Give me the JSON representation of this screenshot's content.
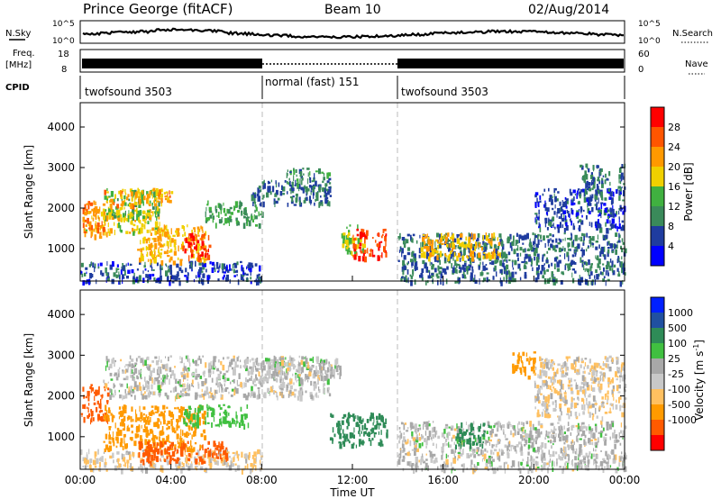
{
  "header": {
    "station": "Prince George (fitACF)",
    "beam": "Beam 10",
    "date": "02/Aug/2014"
  },
  "sky_panel": {
    "left_label": "N.Sky",
    "left_ticks": [
      "10^5",
      "10^0"
    ],
    "right_label": "N.Search",
    "right_ticks": [
      "10^5",
      "10^0"
    ]
  },
  "freq_panel": {
    "left_label": "Freq.",
    "left_unit": "[MHz]",
    "left_ticks": [
      "18",
      "8"
    ],
    "right_label": "Nave",
    "right_ticks": [
      "60",
      "0"
    ]
  },
  "cpid_panel": {
    "label": "CPID",
    "modes": [
      {
        "name": "twofsound 3503",
        "start_h": 0,
        "end_h": 8
      },
      {
        "name": "normal (fast) 151",
        "start_h": 8,
        "end_h": 14
      },
      {
        "name": "twofsound 3503",
        "start_h": 14,
        "end_h": 24
      }
    ]
  },
  "colors": {
    "power": [
      "#0000ff",
      "#1f3c9f",
      "#3a8a5a",
      "#40b040",
      "#f0d000",
      "#ff9900",
      "#ff5500",
      "#ff0000"
    ],
    "velocity": [
      "#ff0000",
      "#ff5a00",
      "#ff9a00",
      "#ffc060",
      "#c8c8c8",
      "#a8a8a8",
      "#40c040",
      "#2e8b57",
      "#2050a0",
      "#0020ff"
    ]
  },
  "chart_data": [
    {
      "type": "heatmap",
      "title": "",
      "quantity": "Power",
      "xlabel": "",
      "ylabel": "Slant Range [km]",
      "xlim": [
        0,
        24
      ],
      "ylim": [
        200,
        4600
      ],
      "yticks": [
        1000,
        2000,
        3000,
        4000
      ],
      "colorbar": {
        "label": "Power [dB]",
        "ticks": [
          "4",
          "8",
          "12",
          "16",
          "20",
          "24",
          "28"
        ],
        "min": 0,
        "max": 32
      },
      "regions": [
        {
          "t0": 0.0,
          "t1": 8.0,
          "r0": 200,
          "r1": 700,
          "power": 6
        },
        {
          "t0": 0.1,
          "t1": 3.5,
          "r0": 1400,
          "r1": 2000,
          "power": 18
        },
        {
          "t0": 0.1,
          "t1": 1.0,
          "r0": 1300,
          "r1": 2200,
          "power": 24
        },
        {
          "t0": 1.0,
          "t1": 3.5,
          "r0": 1800,
          "r1": 2500,
          "power": 14
        },
        {
          "t0": 1.0,
          "t1": 4.0,
          "r0": 2100,
          "r1": 2500,
          "power": 22
        },
        {
          "t0": 2.5,
          "t1": 5.5,
          "r0": 700,
          "r1": 1600,
          "power": 20
        },
        {
          "t0": 4.5,
          "t1": 5.7,
          "r0": 800,
          "r1": 1400,
          "power": 28
        },
        {
          "t0": 5.5,
          "t1": 8.0,
          "r0": 1600,
          "r1": 2200,
          "power": 12
        },
        {
          "t0": 7.5,
          "t1": 11.0,
          "r0": 2100,
          "r1": 2700,
          "power": 8
        },
        {
          "t0": 9.0,
          "t1": 11.0,
          "r0": 2500,
          "r1": 3000,
          "power": 10
        },
        {
          "t0": 11.5,
          "t1": 12.5,
          "r0": 900,
          "r1": 1600,
          "power": 16
        },
        {
          "t0": 12.0,
          "t1": 13.5,
          "r0": 800,
          "r1": 1500,
          "power": 28
        },
        {
          "t0": 14.0,
          "t1": 24.0,
          "r0": 200,
          "r1": 1400,
          "power": 8
        },
        {
          "t0": 15.0,
          "t1": 18.5,
          "r0": 800,
          "r1": 1400,
          "power": 20
        },
        {
          "t0": 20.0,
          "t1": 24.0,
          "r0": 1500,
          "r1": 2500,
          "power": 6
        },
        {
          "t0": 22.0,
          "t1": 24.0,
          "r0": 2400,
          "r1": 3100,
          "power": 8
        }
      ]
    },
    {
      "type": "heatmap",
      "title": "",
      "quantity": "Velocity",
      "xlabel": "Time UT",
      "ylabel": "Slant Range [km]",
      "xlim": [
        0,
        24
      ],
      "ylim": [
        200,
        4600
      ],
      "yticks": [
        1000,
        2000,
        3000,
        4000
      ],
      "xticks": [
        "00:00",
        "04:00",
        "08:00",
        "12:00",
        "16:00",
        "20:00",
        "00:00"
      ],
      "colorbar": {
        "label": "Velocity [m s^-1]",
        "ticks": [
          "1000",
          "500",
          "100",
          "25",
          "-25",
          "-100",
          "-500",
          "-1000"
        ]
      },
      "regions": [
        {
          "t0": 0.0,
          "t1": 8.0,
          "r0": 200,
          "r1": 700,
          "velocity": -25
        },
        {
          "t0": 0.0,
          "t1": 1.2,
          "r0": 1400,
          "r1": 2300,
          "velocity": -700
        },
        {
          "t0": 1.0,
          "t1": 11.0,
          "r0": 2000,
          "r1": 3000,
          "velocity": 0
        },
        {
          "t0": 1.0,
          "t1": 5.5,
          "r0": 700,
          "r1": 1800,
          "velocity": -300
        },
        {
          "t0": 2.5,
          "t1": 6.5,
          "r0": 400,
          "r1": 900,
          "velocity": -600
        },
        {
          "t0": 4.5,
          "t1": 7.5,
          "r0": 1300,
          "r1": 1800,
          "velocity": 60
        },
        {
          "t0": 8.0,
          "t1": 11.5,
          "r0": 2400,
          "r1": 3000,
          "velocity": 0
        },
        {
          "t0": 11.0,
          "t1": 13.5,
          "r0": 800,
          "r1": 1600,
          "velocity": 300
        },
        {
          "t0": 14.0,
          "t1": 24.0,
          "r0": 200,
          "r1": 1400,
          "velocity": 0
        },
        {
          "t0": 16.5,
          "t1": 18.0,
          "r0": 800,
          "r1": 1400,
          "velocity": 120
        },
        {
          "t0": 19.0,
          "t1": 20.0,
          "r0": 2500,
          "r1": 3100,
          "velocity": -400
        },
        {
          "t0": 20.0,
          "t1": 24.0,
          "r0": 1500,
          "r1": 3000,
          "velocity": -20
        }
      ]
    }
  ],
  "time_axis": {
    "label": "Time UT"
  }
}
